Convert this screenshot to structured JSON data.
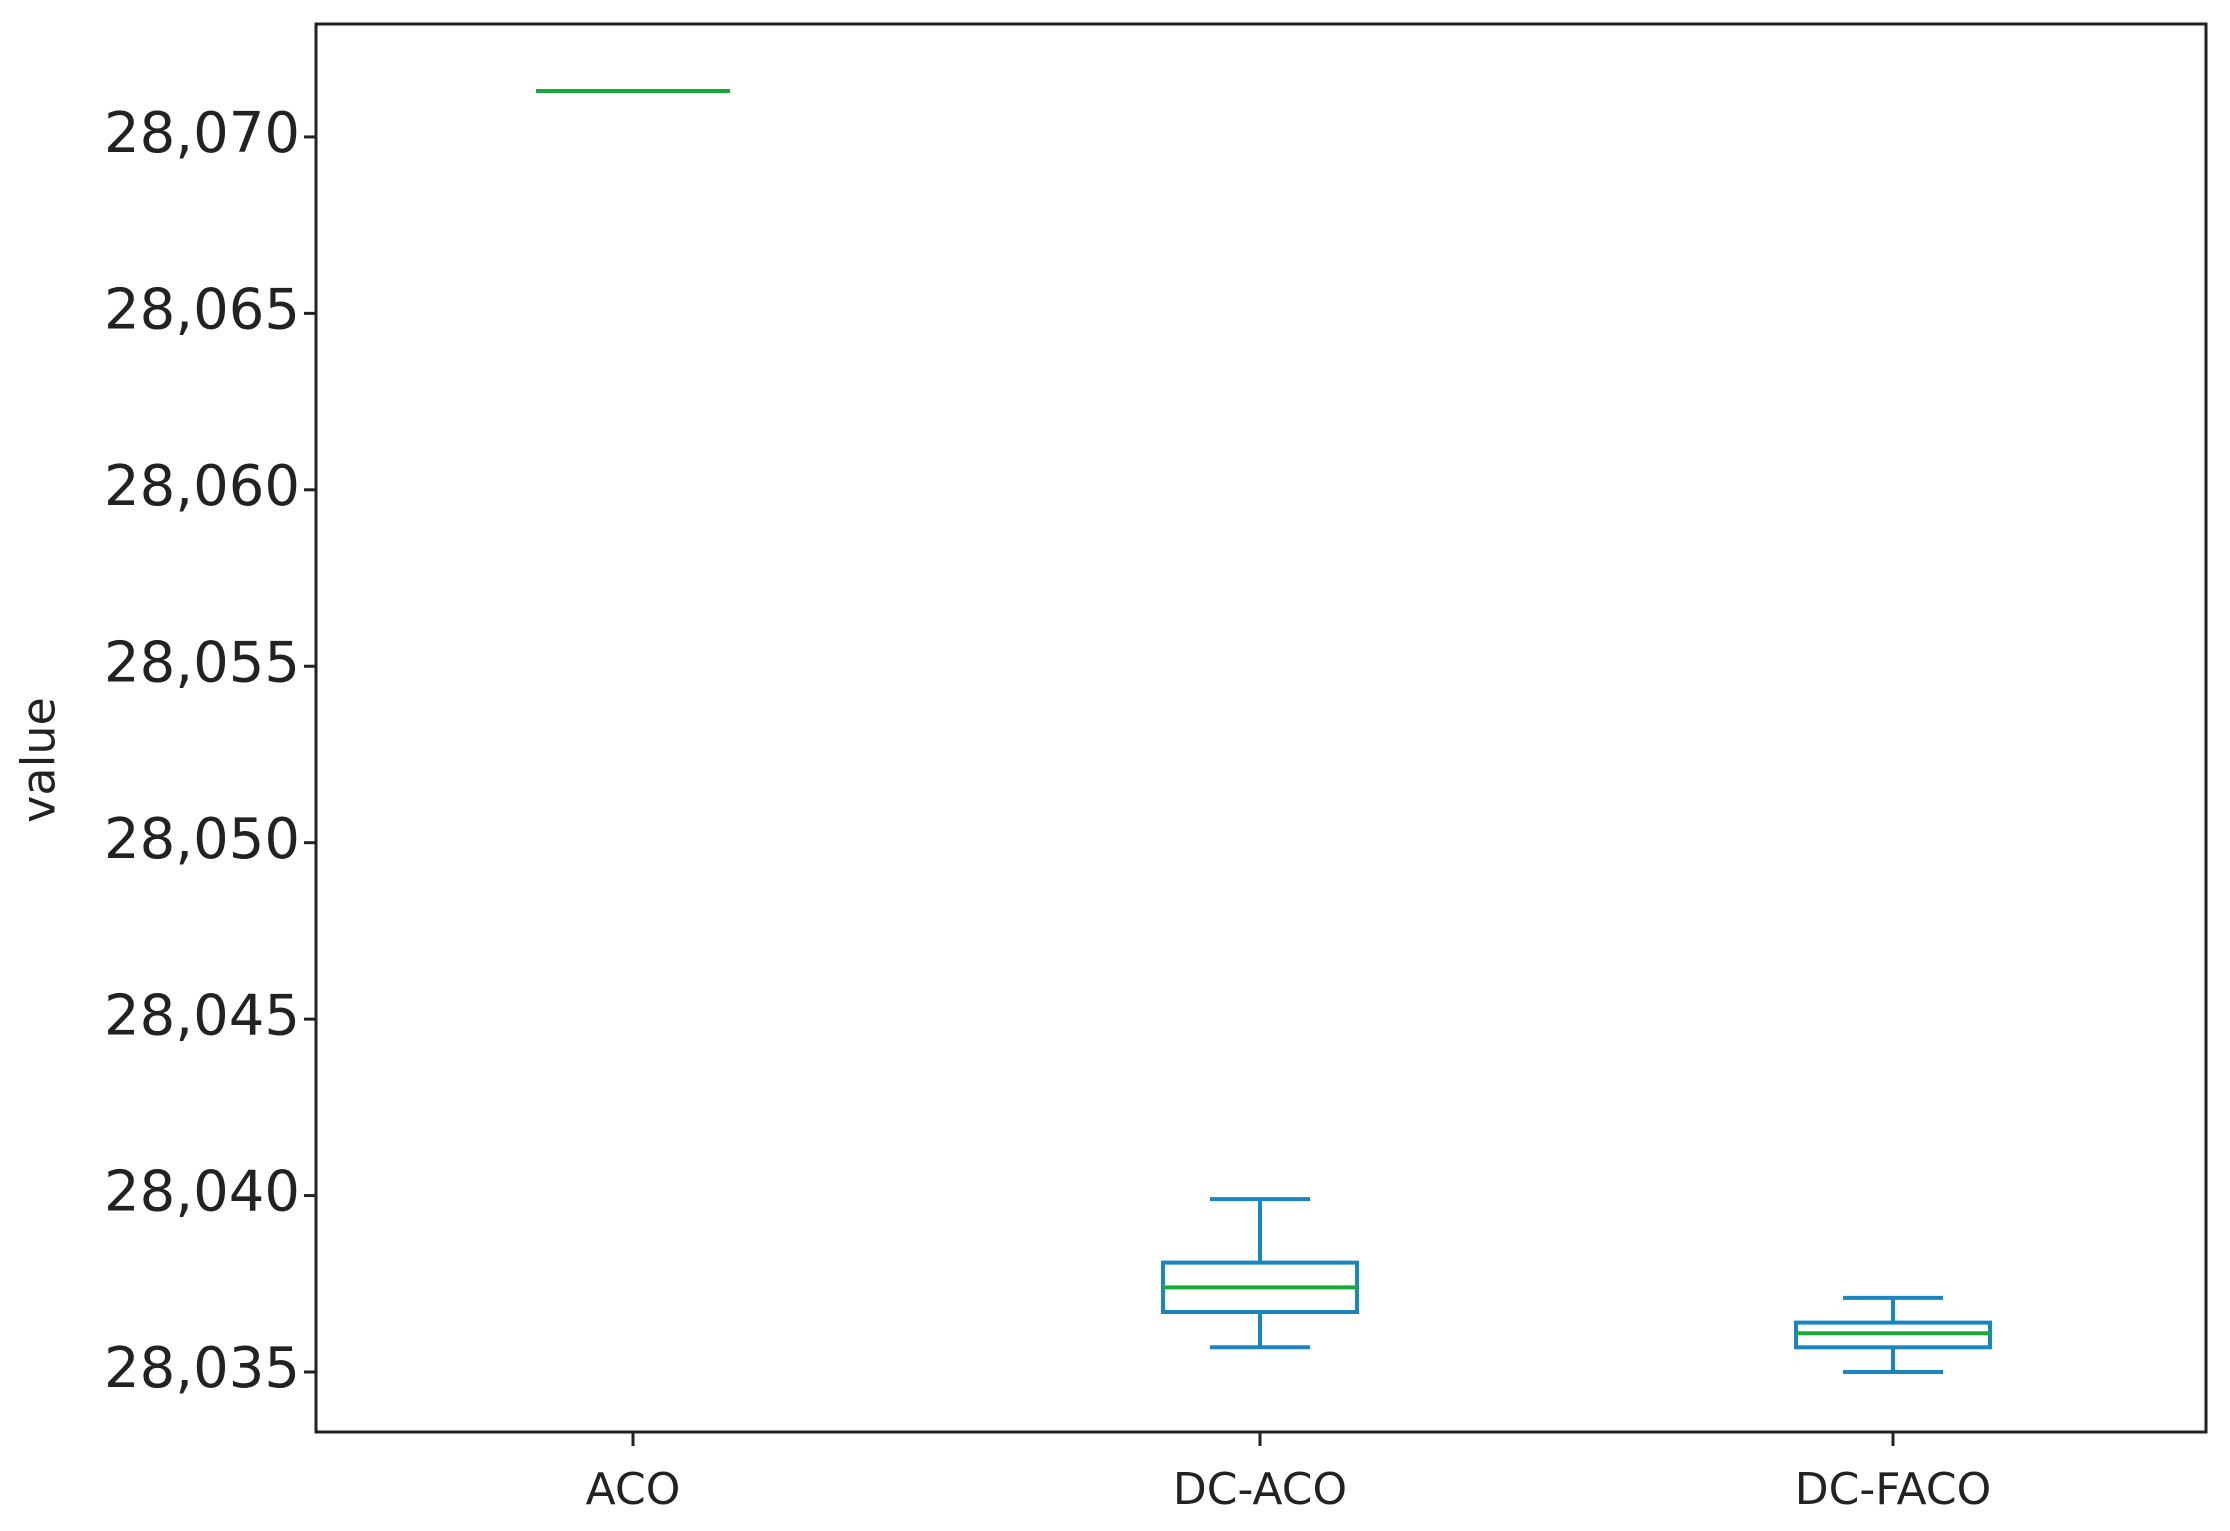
{
  "chart_data": {
    "type": "box",
    "y_label": "value",
    "categories": [
      "ACO",
      "DC-ACO",
      "DC-FACO"
    ],
    "boxes": [
      {
        "min": 28071.3,
        "q1": 28071.3,
        "median": 28071.3,
        "q3": 28071.3,
        "max": 28071.3
      },
      {
        "min": 28035.7,
        "q1": 28036.7,
        "median": 28037.4,
        "q3": 28038.1,
        "max": 28039.9
      },
      {
        "min": 28035.0,
        "q1": 28035.7,
        "median": 28036.1,
        "q3": 28036.4,
        "max": 28037.1
      }
    ],
    "box_color": "#1a86c0",
    "median_color": "#1aa83a",
    "ylim": [
      28033.3,
      28073.2
    ],
    "yticks": [
      {
        "value": 28035,
        "label": "28,035"
      },
      {
        "value": 28040,
        "label": "28,040"
      },
      {
        "value": 28045,
        "label": "28,045"
      },
      {
        "value": 28050,
        "label": "28,050"
      },
      {
        "value": 28055,
        "label": "28,055"
      },
      {
        "value": 28060,
        "label": "28,060"
      },
      {
        "value": 28065,
        "label": "28,065"
      },
      {
        "value": 28070,
        "label": "28,070"
      }
    ],
    "grid": false
  }
}
